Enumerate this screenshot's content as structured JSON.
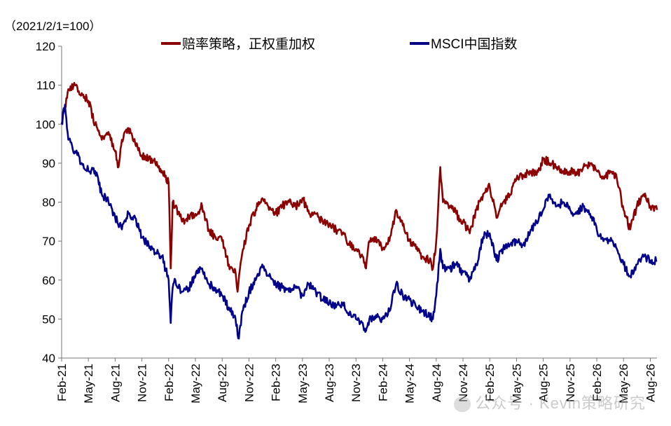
{
  "chart_data": {
    "type": "line",
    "unit_label": "（2021/2/1=100）",
    "ylim": [
      40,
      120
    ],
    "yticks": [
      40,
      50,
      60,
      70,
      80,
      90,
      100,
      110,
      120
    ],
    "xticks": [
      "Feb-21",
      "May-21",
      "Aug-21",
      "Nov-21",
      "Feb-22",
      "May-22",
      "Aug-22",
      "Nov-22",
      "Feb-23",
      "May-23",
      "Aug-23",
      "Nov-23",
      "Feb-24",
      "May-24",
      "Aug-24",
      "Nov-24",
      "Feb-25",
      "May-25",
      "Aug-25",
      "Nov-25",
      "Feb-26",
      "May-26",
      "Aug-26"
    ],
    "legend_position": "top",
    "grid": false,
    "series": [
      {
        "name": "赔率策略，正权重加权",
        "color": "#8B0000",
        "points": [
          [
            0,
            100
          ],
          [
            0.5,
            104
          ],
          [
            1,
            109
          ],
          [
            2,
            110
          ],
          [
            3,
            108
          ],
          [
            4,
            106
          ],
          [
            5,
            100
          ],
          [
            6,
            96
          ],
          [
            7,
            98
          ],
          [
            8,
            93
          ],
          [
            8.5,
            89
          ],
          [
            9,
            96
          ],
          [
            10,
            99
          ],
          [
            11,
            95
          ],
          [
            12,
            92
          ],
          [
            13,
            91
          ],
          [
            14,
            90
          ],
          [
            15,
            88
          ],
          [
            16,
            85
          ],
          [
            16.3,
            63
          ],
          [
            16.6,
            80
          ],
          [
            17,
            79
          ],
          [
            18,
            75
          ],
          [
            19,
            76
          ],
          [
            20,
            77
          ],
          [
            21,
            79
          ],
          [
            22,
            73
          ],
          [
            23,
            71
          ],
          [
            24,
            70
          ],
          [
            25,
            64
          ],
          [
            26,
            62
          ],
          [
            26.3,
            57
          ],
          [
            27,
            67
          ],
          [
            28,
            74
          ],
          [
            29,
            78
          ],
          [
            30,
            81
          ],
          [
            31,
            78
          ],
          [
            32,
            77
          ],
          [
            33,
            79
          ],
          [
            34,
            80
          ],
          [
            35,
            79
          ],
          [
            36,
            81
          ],
          [
            37,
            77
          ],
          [
            38,
            77
          ],
          [
            39,
            75
          ],
          [
            40,
            74
          ],
          [
            41,
            73
          ],
          [
            42,
            72
          ],
          [
            43,
            69
          ],
          [
            44,
            68
          ],
          [
            45,
            66
          ],
          [
            45.5,
            63
          ],
          [
            46,
            70
          ],
          [
            47,
            71
          ],
          [
            48,
            68
          ],
          [
            49,
            70
          ],
          [
            50,
            78
          ],
          [
            51,
            74
          ],
          [
            52,
            70
          ],
          [
            53,
            68
          ],
          [
            54,
            66
          ],
          [
            55,
            65
          ],
          [
            55.5,
            63
          ],
          [
            56,
            70
          ],
          [
            56.6,
            89
          ],
          [
            57,
            80
          ],
          [
            58,
            79
          ],
          [
            59,
            77
          ],
          [
            60,
            75
          ],
          [
            61,
            72
          ],
          [
            62,
            78
          ],
          [
            63,
            82
          ],
          [
            64,
            84
          ],
          [
            65,
            76
          ],
          [
            66,
            80
          ],
          [
            67,
            82
          ],
          [
            68,
            86
          ],
          [
            69,
            87
          ],
          [
            70,
            88
          ],
          [
            71,
            87
          ],
          [
            72,
            91
          ],
          [
            73,
            90
          ],
          [
            74,
            89
          ],
          [
            75,
            88
          ],
          [
            76,
            88
          ],
          [
            77,
            87
          ],
          [
            78,
            89
          ],
          [
            79,
            90
          ],
          [
            80,
            88
          ],
          [
            81,
            86
          ],
          [
            82,
            88
          ],
          [
            83,
            86
          ],
          [
            84,
            78
          ],
          [
            85,
            73
          ],
          [
            86,
            79
          ],
          [
            87,
            82
          ],
          [
            88,
            79
          ],
          [
            89,
            78
          ]
        ]
      },
      {
        "name": "MSCI中国指数",
        "color": "#00008B",
        "points": [
          [
            0,
            100
          ],
          [
            0.5,
            105
          ],
          [
            1,
            96
          ],
          [
            2,
            93
          ],
          [
            3,
            90
          ],
          [
            4,
            88
          ],
          [
            5,
            88
          ],
          [
            6,
            82
          ],
          [
            7,
            80
          ],
          [
            8,
            76
          ],
          [
            9,
            73
          ],
          [
            10,
            77
          ],
          [
            11,
            76
          ],
          [
            12,
            71
          ],
          [
            13,
            69
          ],
          [
            14,
            67
          ],
          [
            15,
            66
          ],
          [
            16,
            60
          ],
          [
            16.3,
            49
          ],
          [
            16.6,
            58
          ],
          [
            17,
            60
          ],
          [
            18,
            57
          ],
          [
            19,
            58
          ],
          [
            20,
            61
          ],
          [
            21,
            63
          ],
          [
            22,
            59
          ],
          [
            23,
            58
          ],
          [
            24,
            56
          ],
          [
            25,
            53
          ],
          [
            26,
            50
          ],
          [
            26.5,
            45
          ],
          [
            27,
            52
          ],
          [
            28,
            57
          ],
          [
            29,
            60
          ],
          [
            30,
            64
          ],
          [
            31,
            61
          ],
          [
            32,
            59
          ],
          [
            33,
            58
          ],
          [
            34,
            57
          ],
          [
            35,
            58
          ],
          [
            36,
            56
          ],
          [
            37,
            59
          ],
          [
            38,
            57
          ],
          [
            39,
            55
          ],
          [
            40,
            54
          ],
          [
            41,
            53
          ],
          [
            42,
            54
          ],
          [
            43,
            51
          ],
          [
            44,
            50
          ],
          [
            45,
            49
          ],
          [
            45.5,
            47
          ],
          [
            46,
            50
          ],
          [
            47,
            51
          ],
          [
            48,
            50
          ],
          [
            49,
            52
          ],
          [
            50,
            59
          ],
          [
            51,
            56
          ],
          [
            52,
            55
          ],
          [
            53,
            53
          ],
          [
            54,
            52
          ],
          [
            55,
            51
          ],
          [
            55.5,
            50
          ],
          [
            56,
            56
          ],
          [
            56.6,
            68
          ],
          [
            57,
            63
          ],
          [
            58,
            63
          ],
          [
            59,
            64
          ],
          [
            60,
            62
          ],
          [
            61,
            60
          ],
          [
            62,
            64
          ],
          [
            63,
            71
          ],
          [
            64,
            72
          ],
          [
            65,
            65
          ],
          [
            66,
            68
          ],
          [
            67,
            69
          ],
          [
            68,
            70
          ],
          [
            69,
            69
          ],
          [
            70,
            72
          ],
          [
            71,
            75
          ],
          [
            72,
            78
          ],
          [
            73,
            82
          ],
          [
            74,
            79
          ],
          [
            75,
            80
          ],
          [
            76,
            78
          ],
          [
            77,
            77
          ],
          [
            78,
            79
          ],
          [
            79,
            77
          ],
          [
            80,
            73
          ],
          [
            81,
            70
          ],
          [
            82,
            70
          ],
          [
            83,
            68
          ],
          [
            84,
            64
          ],
          [
            85,
            61
          ],
          [
            86,
            64
          ],
          [
            87,
            66
          ],
          [
            88,
            65
          ],
          [
            89,
            65
          ]
        ]
      }
    ],
    "watermark": "公众号 · Kevin策略研究"
  }
}
